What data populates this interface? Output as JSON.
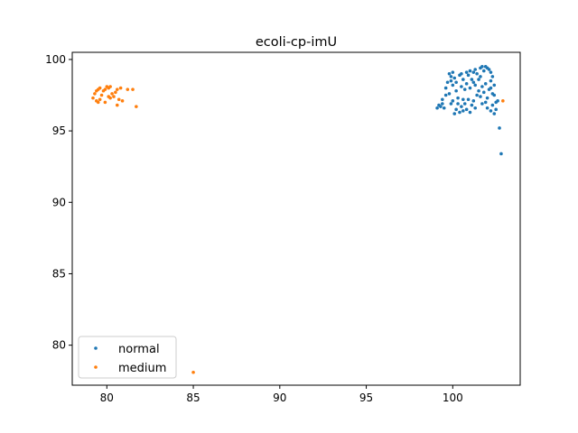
{
  "chart_data": {
    "type": "scatter",
    "title": "ecoli-cp-imU",
    "xlabel": "",
    "ylabel": "",
    "xlim": [
      78.0,
      103.9
    ],
    "ylim": [
      77.2,
      100.5
    ],
    "xticks": [
      80,
      85,
      90,
      95,
      100
    ],
    "yticks": [
      80,
      85,
      90,
      95,
      100
    ],
    "grid": false,
    "legend": "lower-left",
    "series": [
      {
        "name": "normal",
        "color": "#1f77b4",
        "points": [
          [
            99.1,
            96.6
          ],
          [
            99.2,
            96.8
          ],
          [
            99.3,
            96.7
          ],
          [
            99.4,
            96.9
          ],
          [
            99.5,
            96.6
          ],
          [
            99.4,
            97.2
          ],
          [
            99.6,
            97.5
          ],
          [
            99.6,
            98.0
          ],
          [
            99.7,
            98.4
          ],
          [
            99.8,
            99.0
          ],
          [
            99.9,
            98.8
          ],
          [
            100.0,
            99.1
          ],
          [
            99.9,
            98.5
          ],
          [
            100.1,
            98.7
          ],
          [
            100.0,
            98.2
          ],
          [
            100.2,
            98.4
          ],
          [
            99.8,
            97.6
          ],
          [
            100.2,
            97.8
          ],
          [
            100.4,
            98.9
          ],
          [
            100.5,
            99.0
          ],
          [
            100.6,
            98.6
          ],
          [
            100.5,
            98.1
          ],
          [
            100.7,
            97.9
          ],
          [
            100.8,
            98.3
          ],
          [
            100.6,
            97.2
          ],
          [
            100.9,
            98.9
          ],
          [
            101.0,
            99.2
          ],
          [
            101.1,
            98.6
          ],
          [
            101.0,
            98.0
          ],
          [
            101.2,
            98.4
          ],
          [
            101.3,
            99.3
          ],
          [
            101.4,
            99.0
          ],
          [
            101.3,
            98.2
          ],
          [
            101.5,
            98.6
          ],
          [
            101.6,
            99.4
          ],
          [
            101.7,
            99.5
          ],
          [
            101.8,
            99.2
          ],
          [
            101.9,
            99.5
          ],
          [
            102.0,
            99.4
          ],
          [
            102.1,
            99.3
          ],
          [
            102.2,
            99.1
          ],
          [
            102.3,
            98.8
          ],
          [
            102.2,
            98.5
          ],
          [
            102.4,
            98.2
          ],
          [
            102.1,
            97.9
          ],
          [
            102.3,
            97.6
          ],
          [
            102.0,
            97.3
          ],
          [
            102.4,
            97.5
          ],
          [
            102.5,
            97.0
          ],
          [
            102.3,
            96.8
          ],
          [
            102.5,
            96.5
          ],
          [
            102.2,
            96.4
          ],
          [
            102.4,
            96.2
          ],
          [
            102.0,
            96.6
          ],
          [
            101.9,
            97.0
          ],
          [
            101.7,
            96.9
          ],
          [
            101.6,
            97.4
          ],
          [
            101.8,
            97.7
          ],
          [
            101.5,
            97.8
          ],
          [
            101.7,
            98.1
          ],
          [
            101.4,
            97.5
          ],
          [
            101.2,
            97.1
          ],
          [
            101.3,
            96.6
          ],
          [
            101.1,
            96.8
          ],
          [
            101.0,
            96.3
          ],
          [
            100.9,
            97.2
          ],
          [
            100.8,
            96.5
          ],
          [
            100.7,
            96.9
          ],
          [
            100.6,
            96.4
          ],
          [
            100.5,
            96.7
          ],
          [
            100.4,
            96.3
          ],
          [
            100.3,
            96.9
          ],
          [
            100.2,
            96.5
          ],
          [
            100.1,
            96.2
          ],
          [
            100.3,
            97.3
          ],
          [
            99.9,
            96.9
          ],
          [
            100.0,
            97.1
          ],
          [
            101.9,
            98.3
          ],
          [
            102.2,
            98.0
          ],
          [
            101.6,
            98.8
          ],
          [
            100.8,
            99.1
          ],
          [
            101.2,
            99.1
          ],
          [
            102.6,
            97.1
          ],
          [
            102.7,
            95.2
          ],
          [
            102.8,
            93.4
          ]
        ]
      },
      {
        "name": "medium",
        "color": "#ff7f0e",
        "points": [
          [
            79.2,
            97.3
          ],
          [
            79.3,
            97.6
          ],
          [
            79.4,
            97.8
          ],
          [
            79.5,
            97.9
          ],
          [
            79.6,
            98.0
          ],
          [
            79.4,
            97.1
          ],
          [
            79.5,
            97.0
          ],
          [
            79.6,
            97.2
          ],
          [
            79.7,
            97.5
          ],
          [
            79.8,
            97.8
          ],
          [
            79.9,
            97.9
          ],
          [
            80.0,
            98.1
          ],
          [
            80.1,
            98.0
          ],
          [
            80.2,
            98.1
          ],
          [
            79.9,
            97.0
          ],
          [
            80.1,
            97.4
          ],
          [
            80.2,
            97.3
          ],
          [
            80.3,
            97.6
          ],
          [
            80.4,
            97.4
          ],
          [
            80.5,
            97.7
          ],
          [
            80.6,
            97.9
          ],
          [
            80.8,
            98.0
          ],
          [
            80.7,
            97.2
          ],
          [
            80.9,
            97.1
          ],
          [
            80.6,
            96.8
          ],
          [
            81.2,
            97.9
          ],
          [
            81.5,
            97.9
          ],
          [
            81.7,
            96.7
          ],
          [
            102.9,
            97.1
          ],
          [
            85.0,
            78.1
          ]
        ]
      }
    ]
  }
}
